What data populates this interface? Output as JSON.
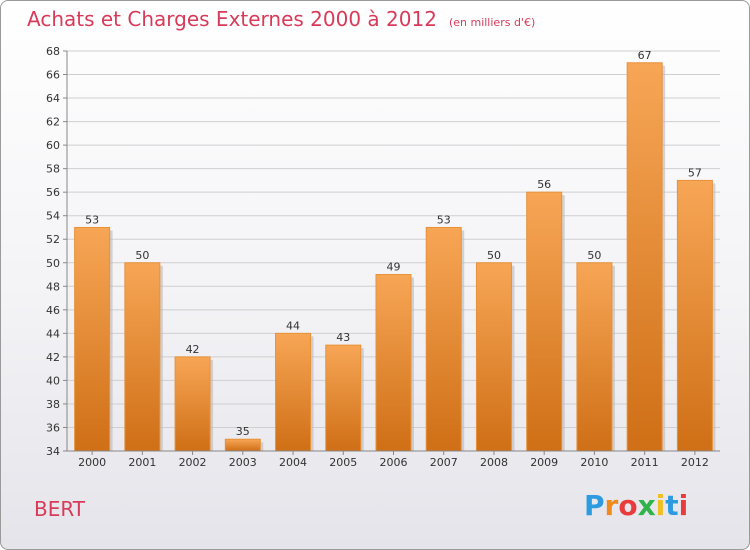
{
  "chart_data": {
    "type": "bar",
    "title": "Achats et Charges Externes 2000 à 2012",
    "subtitle": "(en milliers d'€)",
    "categories": [
      "2000",
      "2001",
      "2002",
      "2003",
      "2004",
      "2005",
      "2006",
      "2007",
      "2008",
      "2009",
      "2010",
      "2011",
      "2012"
    ],
    "values": [
      53,
      50,
      42,
      35,
      44,
      43,
      49,
      53,
      50,
      56,
      50,
      67,
      57
    ],
    "ylim": [
      34,
      68
    ],
    "yticks": [
      34,
      36,
      38,
      40,
      42,
      44,
      46,
      48,
      50,
      52,
      54,
      56,
      58,
      60,
      62,
      64,
      66,
      68
    ],
    "grid": true,
    "bar_color": "#f0953a"
  },
  "commune": "BERT",
  "logo": {
    "letters": [
      "P",
      "r",
      "o",
      "x",
      "i",
      "t",
      "i"
    ],
    "colors": [
      "#2d9be0",
      "#f08a1c",
      "#e83b3b",
      "#2fb34a",
      "#f0c020",
      "#2d9be0",
      "#e83b3b"
    ]
  }
}
